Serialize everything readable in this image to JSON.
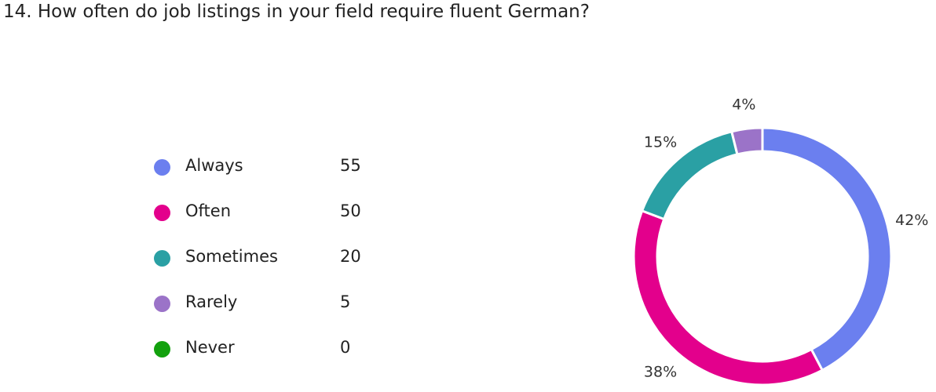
{
  "title": "14. How often do job listings in your field require fluent German?",
  "chart_data": {
    "type": "pie",
    "donut": true,
    "categories": [
      "Always",
      "Often",
      "Sometimes",
      "Rarely",
      "Never"
    ],
    "values": [
      55,
      50,
      20,
      5,
      0
    ],
    "colors": [
      "#6B7FEF",
      "#E3008C",
      "#2AA0A4",
      "#9B73C8",
      "#13A10E"
    ],
    "percent_labels": [
      "42%",
      "38%",
      "15%",
      "4%",
      ""
    ],
    "legend_position": "left"
  }
}
